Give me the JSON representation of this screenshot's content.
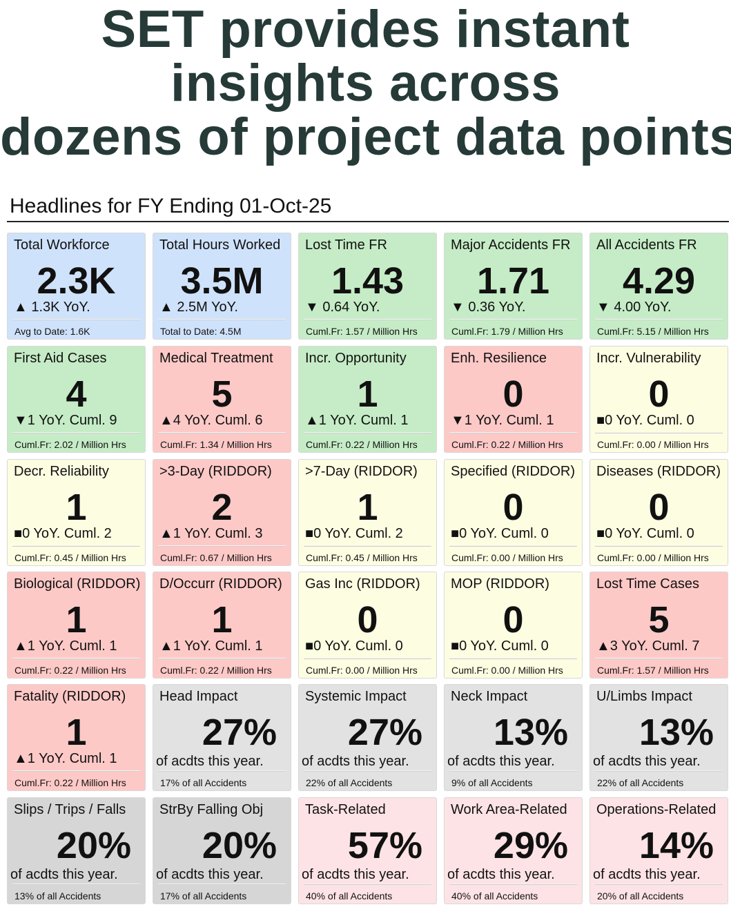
{
  "hero": {
    "line1": "SET provides instant",
    "line2": "insights across",
    "line3": "dozens of project data points."
  },
  "headline": "Headlines for FY Ending 01-Oct-25",
  "cards": [
    {
      "title": "Total Workforce",
      "value": "2.3K",
      "delta": "▲ 1.3K YoY.",
      "foot": "Avg to Date: 1.6K",
      "color": "#cfe2fb"
    },
    {
      "title": "Total Hours Worked",
      "value": "3.5M",
      "delta": "▲ 2.5M YoY.",
      "foot": "Total to Date: 4.5M",
      "color": "#cfe2fb"
    },
    {
      "title": "Lost Time FR",
      "value": "1.43",
      "delta": "▼ 0.64 YoY.",
      "foot": "Cuml.Fr: 1.57 / Million Hrs",
      "color": "#c5ecc6"
    },
    {
      "title": "Major Accidents FR",
      "value": "1.71",
      "delta": "▼ 0.36 YoY.",
      "foot": "Cuml.Fr: 1.79 / Million Hrs",
      "color": "#c5ecc6"
    },
    {
      "title": "All Accidents FR",
      "value": "4.29",
      "delta": "▼ 4.00 YoY.",
      "foot": "Cuml.Fr: 5.15 / Million Hrs",
      "color": "#c5ecc6"
    },
    {
      "title": "First Aid Cases",
      "value": "4",
      "delta": "▼1 YoY. Cuml. 9",
      "foot": "Cuml.Fr: 2.02 / Million Hrs",
      "color": "#c5ecc6"
    },
    {
      "title": "Medical Treatment",
      "value": "5",
      "delta": "▲4 YoY. Cuml. 6",
      "foot": "Cuml.Fr: 1.34 / Million Hrs",
      "color": "#fdc9c7"
    },
    {
      "title": "Incr. Opportunity",
      "value": "1",
      "delta": "▲1 YoY. Cuml. 1",
      "foot": "Cuml.Fr: 0.22 / Million Hrs",
      "color": "#c5ecc6"
    },
    {
      "title": "Enh. Resilience",
      "value": "0",
      "delta": "▼1 YoY. Cuml. 1",
      "foot": "Cuml.Fr: 0.22 / Million Hrs",
      "color": "#fdc9c7"
    },
    {
      "title": "Incr. Vulnerability",
      "value": "0",
      "delta": "■0 YoY. Cuml. 0",
      "foot": "Cuml.Fr: 0.00 / Million Hrs",
      "color": "#fdfde2"
    },
    {
      "title": "Decr. Reliability",
      "value": "1",
      "delta": "■0 YoY. Cuml. 2",
      "foot": "Cuml.Fr: 0.45 / Million Hrs",
      "color": "#fdfde2"
    },
    {
      "title": ">3-Day (RIDDOR)",
      "value": "2",
      "delta": "▲1 YoY. Cuml. 3",
      "foot": "Cuml.Fr: 0.67 / Million Hrs",
      "color": "#fdc9c7"
    },
    {
      "title": ">7-Day (RIDDOR)",
      "value": "1",
      "delta": "■0 YoY. Cuml. 2",
      "foot": "Cuml.Fr: 0.45 / Million Hrs",
      "color": "#fdfde2"
    },
    {
      "title": "Specified (RIDDOR)",
      "value": "0",
      "delta": "■0 YoY. Cuml. 0",
      "foot": "Cuml.Fr: 0.00 / Million Hrs",
      "color": "#fdfde2"
    },
    {
      "title": "Diseases (RIDDOR)",
      "value": "0",
      "delta": "■0 YoY. Cuml. 0",
      "foot": "Cuml.Fr: 0.00 / Million Hrs",
      "color": "#fdfde2"
    },
    {
      "title": "Biological (RIDDOR)",
      "value": "1",
      "delta": "▲1 YoY. Cuml. 1",
      "foot": "Cuml.Fr: 0.22 / Million Hrs",
      "color": "#fdc9c7"
    },
    {
      "title": "D/Occurr (RIDDOR)",
      "value": "1",
      "delta": "▲1 YoY. Cuml. 1",
      "foot": "Cuml.Fr: 0.22 / Million Hrs",
      "color": "#fdc9c7"
    },
    {
      "title": "Gas Inc (RIDDOR)",
      "value": "0",
      "delta": "■0 YoY. Cuml. 0",
      "foot": "Cuml.Fr: 0.00 / Million Hrs",
      "color": "#fdfde2"
    },
    {
      "title": "MOP (RIDDOR)",
      "value": "0",
      "delta": "■0 YoY. Cuml. 0",
      "foot": "Cuml.Fr: 0.00 / Million Hrs",
      "color": "#fdfde2"
    },
    {
      "title": "Lost Time Cases",
      "value": "5",
      "delta": "▲3 YoY. Cuml. 7",
      "foot": "Cuml.Fr: 1.57 / Million Hrs",
      "color": "#fdc9c7"
    },
    {
      "title": "Fatality (RIDDOR)",
      "value": "1",
      "delta": "▲1 YoY. Cuml. 1",
      "foot": "Cuml.Fr: 0.22 / Million Hrs",
      "color": "#fdc9c7"
    },
    {
      "title": "Head Impact",
      "value": "27%",
      "delta": "of acdts this year.",
      "foot": "17% of all Accidents",
      "color": "#e2e2e2"
    },
    {
      "title": "Systemic Impact",
      "value": "27%",
      "delta": "of acdts this year.",
      "foot": "22% of all Accidents",
      "color": "#e2e2e2"
    },
    {
      "title": "Neck Impact",
      "value": "13%",
      "delta": "of acdts this year.",
      "foot": "9% of all Accidents",
      "color": "#e2e2e2"
    },
    {
      "title": "U/Limbs Impact",
      "value": "13%",
      "delta": "of acdts this year.",
      "foot": "22% of all Accidents",
      "color": "#e2e2e2"
    },
    {
      "title": "Slips / Trips / Falls",
      "value": "20%",
      "delta": "of acdts this year.",
      "foot": "13% of all Accidents",
      "color": "#d6d6d6"
    },
    {
      "title": "StrBy Falling Obj",
      "value": "20%",
      "delta": "of acdts this year.",
      "foot": "17% of all Accidents",
      "color": "#d6d6d6"
    },
    {
      "title": "Task-Related",
      "value": "57%",
      "delta": "of acdts this year.",
      "foot": "40% of all Accidents",
      "color": "#fde3e5"
    },
    {
      "title": "Work Area-Related",
      "value": "29%",
      "delta": "of acdts this year.",
      "foot": "40% of all Accidents",
      "color": "#fde3e5"
    },
    {
      "title": "Operations-Related",
      "value": "14%",
      "delta": "of acdts this year.",
      "foot": "20% of all Accidents",
      "color": "#fde3e5"
    }
  ]
}
